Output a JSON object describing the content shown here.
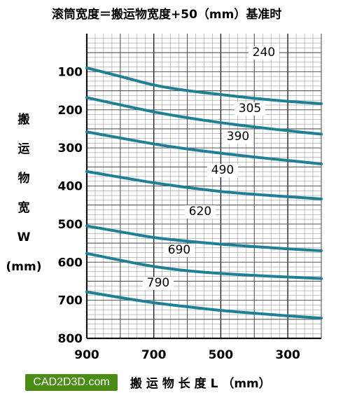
{
  "chart_data": {
    "type": "line",
    "title": "滚筒宽度＝搬运物宽度+50（mm）基准时",
    "ylabel_chars": [
      "搬",
      "运",
      "物",
      "宽",
      "W",
      "(mm)"
    ],
    "xlabel": "搬 运 物 长 度 L （mm）",
    "xlim": [
      900,
      200
    ],
    "ylim": [
      800,
      0
    ],
    "x_ticks": [
      900,
      700,
      500,
      300
    ],
    "y_ticks": [
      100,
      200,
      300,
      400,
      500,
      600,
      700,
      800
    ],
    "x_grid": [
      900,
      800,
      700,
      600,
      500,
      400,
      300,
      200
    ],
    "y_grid": [
      50,
      100,
      150,
      200,
      250,
      300,
      350,
      400,
      450,
      500,
      550,
      600,
      650,
      700,
      750,
      800
    ],
    "series": [
      {
        "name": "240",
        "points": [
          [
            900,
            90
          ],
          [
            800,
            112
          ],
          [
            700,
            136
          ],
          [
            600,
            150
          ],
          [
            500,
            160
          ],
          [
            400,
            170
          ],
          [
            300,
            178
          ],
          [
            200,
            184
          ]
        ]
      },
      {
        "name": "305",
        "points": [
          [
            900,
            168
          ],
          [
            800,
            187
          ],
          [
            700,
            206
          ],
          [
            600,
            221
          ],
          [
            500,
            234
          ],
          [
            400,
            245
          ],
          [
            300,
            255
          ],
          [
            200,
            264
          ]
        ]
      },
      {
        "name": "390",
        "points": [
          [
            900,
            258
          ],
          [
            800,
            274
          ],
          [
            700,
            290
          ],
          [
            600,
            303
          ],
          [
            500,
            314
          ],
          [
            400,
            324
          ],
          [
            300,
            333
          ],
          [
            200,
            342
          ]
        ]
      },
      {
        "name": "490",
        "points": [
          [
            900,
            362
          ],
          [
            800,
            377
          ],
          [
            700,
            392
          ],
          [
            600,
            404
          ],
          [
            500,
            415
          ],
          [
            400,
            422
          ],
          [
            300,
            428
          ],
          [
            200,
            434
          ]
        ]
      },
      {
        "name": "620",
        "points": [
          [
            900,
            505
          ],
          [
            800,
            520
          ],
          [
            700,
            536
          ],
          [
            600,
            545
          ],
          [
            500,
            553
          ],
          [
            400,
            559
          ],
          [
            300,
            565
          ],
          [
            200,
            570
          ]
        ]
      },
      {
        "name": "690",
        "points": [
          [
            900,
            577
          ],
          [
            800,
            595
          ],
          [
            700,
            612
          ],
          [
            600,
            623
          ],
          [
            500,
            630
          ],
          [
            400,
            635
          ],
          [
            300,
            639
          ],
          [
            200,
            643
          ]
        ]
      },
      {
        "name": "790",
        "points": [
          [
            900,
            678
          ],
          [
            800,
            693
          ],
          [
            700,
            707
          ],
          [
            600,
            717
          ],
          [
            500,
            727
          ],
          [
            400,
            734
          ],
          [
            300,
            741
          ],
          [
            200,
            747
          ]
        ]
      }
    ]
  },
  "watermark": "CAD2D3D.com"
}
